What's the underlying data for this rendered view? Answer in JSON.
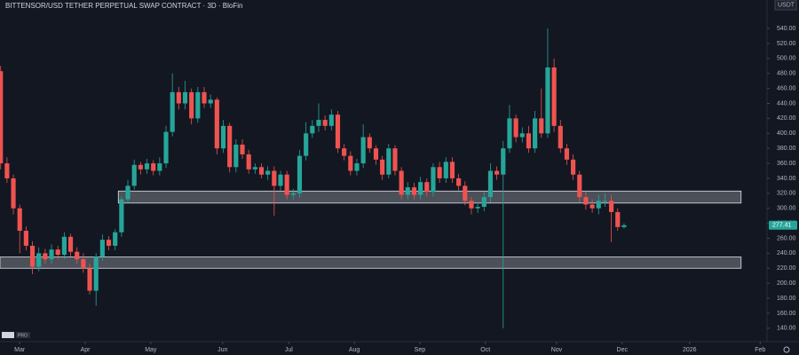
{
  "chart_data": {
    "type": "candlestick",
    "title": "BITTENSOR/USD TETHER PERPETUAL SWAP CONTRACT · 3D · BloFin",
    "currency": "USDT",
    "badge": "PRO",
    "up_color": "#26a69a",
    "down_color": "#ef5350",
    "xlim": [
      -0.1,
      120.2
    ],
    "ylim": [
      122,
      578
    ],
    "yticks": [
      {
        "value": 140,
        "label": "140.00"
      },
      {
        "value": 160,
        "label": "160.00"
      },
      {
        "value": 180,
        "label": "180.00"
      },
      {
        "value": 200,
        "label": "200.00"
      },
      {
        "value": 220,
        "label": "220.00"
      },
      {
        "value": 240,
        "label": "240.00"
      },
      {
        "value": 260,
        "label": "260.00"
      },
      {
        "value": 280,
        "label": "280.00"
      },
      {
        "value": 300,
        "label": "300.00"
      },
      {
        "value": 320,
        "label": "320.00"
      },
      {
        "value": 340,
        "label": "340.00"
      },
      {
        "value": 360,
        "label": "360.00"
      },
      {
        "value": 380,
        "label": "380.00"
      },
      {
        "value": 400,
        "label": "400.00"
      },
      {
        "value": 420,
        "label": "420.00"
      },
      {
        "value": 440,
        "label": "440.00"
      },
      {
        "value": 460,
        "label": "460.00"
      },
      {
        "value": 480,
        "label": "480.00"
      },
      {
        "value": 500,
        "label": "500.00"
      },
      {
        "value": 520,
        "label": "520.00"
      },
      {
        "value": 540,
        "label": "540.00"
      }
    ],
    "xticks": [
      {
        "value": 3.0,
        "label": "Mar"
      },
      {
        "value": 13.3,
        "label": "Apr"
      },
      {
        "value": 23.6,
        "label": "May"
      },
      {
        "value": 34.9,
        "label": "Jun"
      },
      {
        "value": 45.3,
        "label": "Jul"
      },
      {
        "value": 55.6,
        "label": "Aug"
      },
      {
        "value": 65.9,
        "label": "Sep"
      },
      {
        "value": 76.2,
        "label": "Oct"
      },
      {
        "value": 87.4,
        "label": "Nov"
      },
      {
        "value": 97.7,
        "label": "Dec"
      },
      {
        "value": 108.3,
        "label": "2026"
      },
      {
        "value": 119.4,
        "label": "Feb"
      }
    ],
    "x": [
      0,
      1,
      2,
      3,
      4,
      5,
      6,
      7,
      8,
      9,
      10,
      11,
      12,
      13,
      14,
      15,
      16,
      17,
      18,
      19,
      20,
      21,
      22,
      23,
      24,
      25,
      26,
      27,
      28,
      29,
      30,
      31,
      32,
      33,
      34,
      35,
      36,
      37,
      38,
      39,
      40,
      41,
      42,
      43,
      44,
      45,
      46,
      47,
      48,
      49,
      50,
      51,
      52,
      53,
      54,
      55,
      56,
      57,
      58,
      59,
      60,
      61,
      62,
      63,
      64,
      65,
      66,
      67,
      68,
      69,
      70,
      71,
      72,
      73,
      74,
      75,
      76,
      77,
      78,
      79,
      80,
      81,
      82,
      83,
      84,
      85,
      86,
      87,
      88,
      89,
      90,
      91,
      92,
      93,
      94,
      95,
      96,
      97,
      98
    ],
    "open": [
      483,
      360,
      340,
      300,
      270,
      250,
      222,
      240,
      232,
      245,
      238,
      262,
      242,
      232,
      220,
      190,
      235,
      258,
      250,
      268,
      312,
      330,
      358,
      352,
      360,
      350,
      360,
      402,
      455,
      440,
      455,
      420,
      455,
      440,
      445,
      380,
      410,
      355,
      385,
      372,
      352,
      355,
      345,
      350,
      330,
      345,
      318,
      320,
      370,
      400,
      410,
      418,
      410,
      425,
      380,
      370,
      350,
      360,
      395,
      380,
      365,
      345,
      380,
      350,
      318,
      328,
      318,
      335,
      322,
      355,
      340,
      362,
      340,
      330,
      310,
      300,
      302,
      315,
      350,
      345,
      380,
      420,
      395,
      400,
      380,
      420,
      400,
      488,
      410,
      380,
      365,
      345,
      315,
      305,
      300,
      310,
      310,
      295,
      275
    ],
    "high": [
      490,
      368,
      345,
      305,
      276,
      256,
      248,
      246,
      252,
      250,
      268,
      266,
      248,
      240,
      226,
      240,
      265,
      263,
      272,
      316,
      338,
      365,
      362,
      366,
      364,
      368,
      410,
      480,
      462,
      470,
      460,
      462,
      462,
      452,
      448,
      418,
      414,
      392,
      392,
      378,
      360,
      360,
      356,
      356,
      350,
      350,
      326,
      378,
      415,
      418,
      440,
      424,
      432,
      430,
      386,
      376,
      366,
      412,
      400,
      384,
      370,
      386,
      384,
      355,
      335,
      334,
      342,
      340,
      360,
      362,
      368,
      368,
      346,
      336,
      315,
      308,
      322,
      360,
      356,
      390,
      438,
      425,
      408,
      410,
      430,
      460,
      540,
      500,
      418,
      386,
      372,
      350,
      322,
      312,
      318,
      320,
      318,
      300,
      280
    ],
    "low": [
      352,
      334,
      292,
      240,
      244,
      212,
      216,
      226,
      226,
      232,
      232,
      236,
      226,
      214,
      185,
      170,
      230,
      244,
      244,
      262,
      306,
      325,
      345,
      346,
      344,
      344,
      354,
      396,
      432,
      432,
      412,
      414,
      434,
      434,
      372,
      374,
      348,
      348,
      366,
      346,
      346,
      340,
      338,
      290,
      324,
      312,
      312,
      314,
      364,
      394,
      402,
      404,
      404,
      374,
      364,
      344,
      344,
      354,
      374,
      358,
      338,
      340,
      344,
      312,
      312,
      312,
      312,
      316,
      316,
      334,
      334,
      334,
      324,
      304,
      292,
      294,
      296,
      308,
      338,
      140,
      374,
      388,
      388,
      374,
      374,
      394,
      394,
      402,
      374,
      358,
      338,
      308,
      298,
      294,
      292,
      302,
      255,
      270,
      273
    ],
    "close": [
      360,
      340,
      300,
      270,
      250,
      222,
      240,
      232,
      245,
      238,
      262,
      242,
      232,
      220,
      190,
      235,
      258,
      250,
      268,
      312,
      330,
      358,
      352,
      360,
      350,
      360,
      402,
      455,
      440,
      455,
      420,
      455,
      440,
      445,
      380,
      410,
      355,
      385,
      372,
      352,
      355,
      345,
      350,
      330,
      345,
      318,
      320,
      370,
      400,
      410,
      418,
      410,
      425,
      380,
      370,
      350,
      360,
      395,
      380,
      365,
      345,
      380,
      350,
      318,
      328,
      318,
      335,
      322,
      355,
      340,
      362,
      340,
      330,
      310,
      300,
      302,
      315,
      350,
      345,
      380,
      420,
      395,
      400,
      380,
      420,
      400,
      488,
      410,
      380,
      365,
      345,
      315,
      305,
      300,
      310,
      310,
      295,
      275,
      277.41
    ],
    "last_price": 277.41,
    "zones": [
      {
        "y": [
          307,
          323
        ],
        "x": [
          18.5,
          116.4
        ]
      },
      {
        "y": [
          220,
          235
        ],
        "x": [
          -0.1,
          116.4
        ]
      }
    ]
  }
}
